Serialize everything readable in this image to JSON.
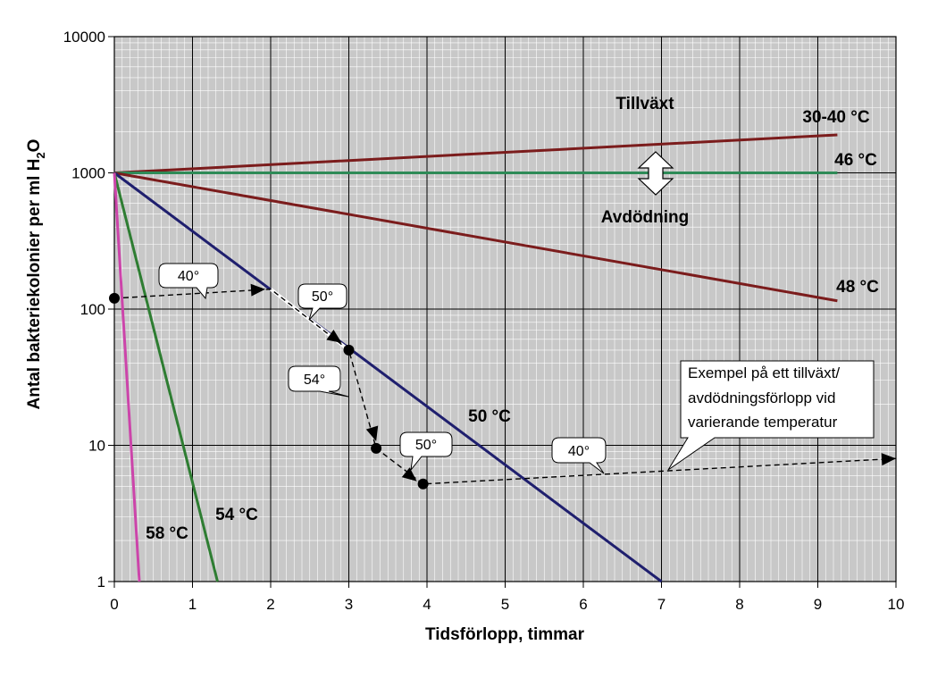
{
  "chart_data": {
    "type": "line",
    "xlabel": "Tidsförlopp, timmar",
    "ylabel": "Antal bakteriekolonier per ml H",
    "ylabel_sub": "2",
    "ylabel_end": "O",
    "xlim": [
      0,
      10
    ],
    "ylim": [
      1,
      10000
    ],
    "yscale": "log",
    "grid": true,
    "x_ticks": [
      "0",
      "1",
      "2",
      "3",
      "4",
      "5",
      "6",
      "7",
      "8",
      "9",
      "10"
    ],
    "y_ticks": [
      "1",
      "10",
      "100",
      "1000",
      "10000"
    ],
    "series": [
      {
        "name": "30-40 °C",
        "color": "#7b1c1c",
        "points": [
          [
            0,
            1000
          ],
          [
            9.25,
            1900
          ]
        ]
      },
      {
        "name": "46 °C",
        "color": "#2e8b57",
        "points": [
          [
            0,
            1000
          ],
          [
            9.25,
            1000
          ]
        ]
      },
      {
        "name": "48 °C",
        "color": "#7b1c1c",
        "points": [
          [
            0,
            1000
          ],
          [
            9.25,
            115
          ]
        ]
      },
      {
        "name": "50 °C",
        "color": "#1f1f6e",
        "points": [
          [
            0,
            1000
          ],
          [
            7.0,
            1
          ]
        ]
      },
      {
        "name": "54 °C",
        "color": "#2e7d32",
        "points": [
          [
            0,
            1000
          ],
          [
            1.32,
            1
          ]
        ]
      },
      {
        "name": "58 °C",
        "color": "#cc44aa",
        "points": [
          [
            0,
            1000
          ],
          [
            0.32,
            1
          ]
        ]
      }
    ],
    "region_labels": [
      "Tillväxt",
      "Avdödning"
    ],
    "example_path": {
      "points": [
        [
          0,
          120
        ],
        [
          2.0,
          140
        ],
        [
          3.0,
          50
        ],
        [
          3.35,
          9.5
        ],
        [
          3.95,
          5.2
        ],
        [
          10,
          8
        ]
      ],
      "markers": [
        [
          0,
          120
        ],
        [
          3.0,
          50
        ],
        [
          3.35,
          9.5
        ],
        [
          3.95,
          5.2
        ]
      ],
      "callouts": [
        "40°",
        "50°",
        "54°",
        "50°",
        "40°"
      ],
      "note_lines": [
        "Exempel på ett tillväxt/",
        "avdödningsförlopp vid",
        "varierande temperatur"
      ]
    }
  }
}
